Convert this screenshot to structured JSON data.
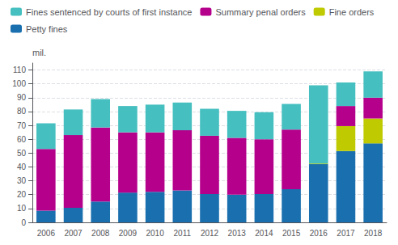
{
  "chart_data": {
    "type": "bar",
    "stacked": true,
    "categories": [
      2006,
      2007,
      2008,
      2009,
      2010,
      2011,
      2012,
      2013,
      2014,
      2015,
      2016,
      2017,
      2018
    ],
    "series": [
      {
        "name": "Petty fines",
        "color": "#1a6faf",
        "values": [
          8.5,
          10.5,
          15.0,
          21.5,
          22.0,
          23.0,
          20.5,
          20.0,
          20.5,
          24.0,
          42.0,
          51.5,
          57.0
        ]
      },
      {
        "name": "Fine orders",
        "color": "#bfca00",
        "values": [
          0.0,
          0.0,
          0.0,
          0.0,
          0.0,
          0.0,
          0.0,
          0.0,
          0.0,
          0.0,
          0.5,
          18.0,
          18.0
        ]
      },
      {
        "name": "Summary penal orders",
        "color": "#b5008c",
        "values": [
          44.5,
          52.5,
          53.5,
          43.5,
          43.0,
          43.5,
          42.0,
          41.0,
          39.5,
          43.0,
          0.0,
          14.5,
          15.0
        ]
      },
      {
        "name": "Fines sentenced by courts of first instance",
        "color": "#45bfbf",
        "values": [
          18.5,
          18.5,
          20.5,
          19.0,
          20.0,
          20.0,
          19.5,
          19.5,
          19.5,
          18.5,
          56.5,
          17.0,
          19.0
        ]
      }
    ],
    "ylabel": "mil.",
    "ylim": [
      0,
      115
    ],
    "yticks": [
      0,
      10,
      20,
      30,
      40,
      50,
      60,
      70,
      80,
      90,
      100,
      110
    ],
    "grid": true,
    "legend": "upper left"
  }
}
